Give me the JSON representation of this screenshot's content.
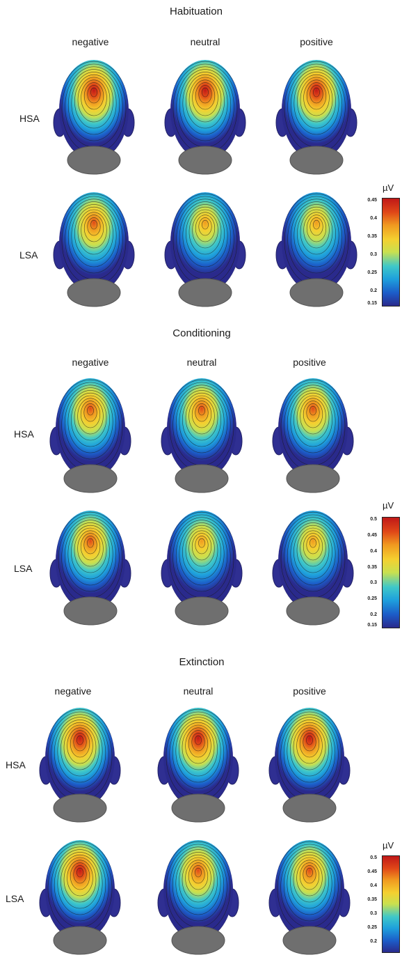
{
  "col_labels": [
    "negative",
    "neutral",
    "positive"
  ],
  "row_labels": [
    "HSA",
    "LSA"
  ],
  "unit": "µV",
  "colormap": [
    "#2a2a8c",
    "#1c5cc8",
    "#1ea0dc",
    "#40c8c8",
    "#c8e050",
    "#f4d030",
    "#f09a20",
    "#e04818",
    "#c01818"
  ],
  "sections": [
    {
      "title": "Habituation",
      "colorbar": {
        "min": 0.15,
        "max": 0.45,
        "ticks": [
          "0.45",
          "0.4",
          "0.35",
          "0.3",
          "0.25",
          "0.2",
          "0.15"
        ]
      },
      "peak_levels": [
        [
          0.46,
          0.46,
          0.46
        ],
        [
          0.4,
          0.39,
          0.39
        ]
      ]
    },
    {
      "title": "Conditioning",
      "colorbar": {
        "min": 0.15,
        "max": 0.5,
        "ticks": [
          "0.5",
          "0.45",
          "0.4",
          "0.35",
          "0.3",
          "0.25",
          "0.2",
          "0.15"
        ]
      },
      "peak_levels": [
        [
          0.47,
          0.47,
          0.47
        ],
        [
          0.45,
          0.42,
          0.4
        ]
      ]
    },
    {
      "title": "Extinction",
      "colorbar": {
        "min": 0.15,
        "max": 0.5,
        "ticks": [
          "0.5",
          "0.45",
          "0.4",
          "0.35",
          "0.3",
          "0.25",
          "0.2"
        ]
      },
      "peak_levels": [
        [
          0.48,
          0.48,
          0.48
        ],
        [
          0.48,
          0.47,
          0.47
        ]
      ]
    }
  ]
}
